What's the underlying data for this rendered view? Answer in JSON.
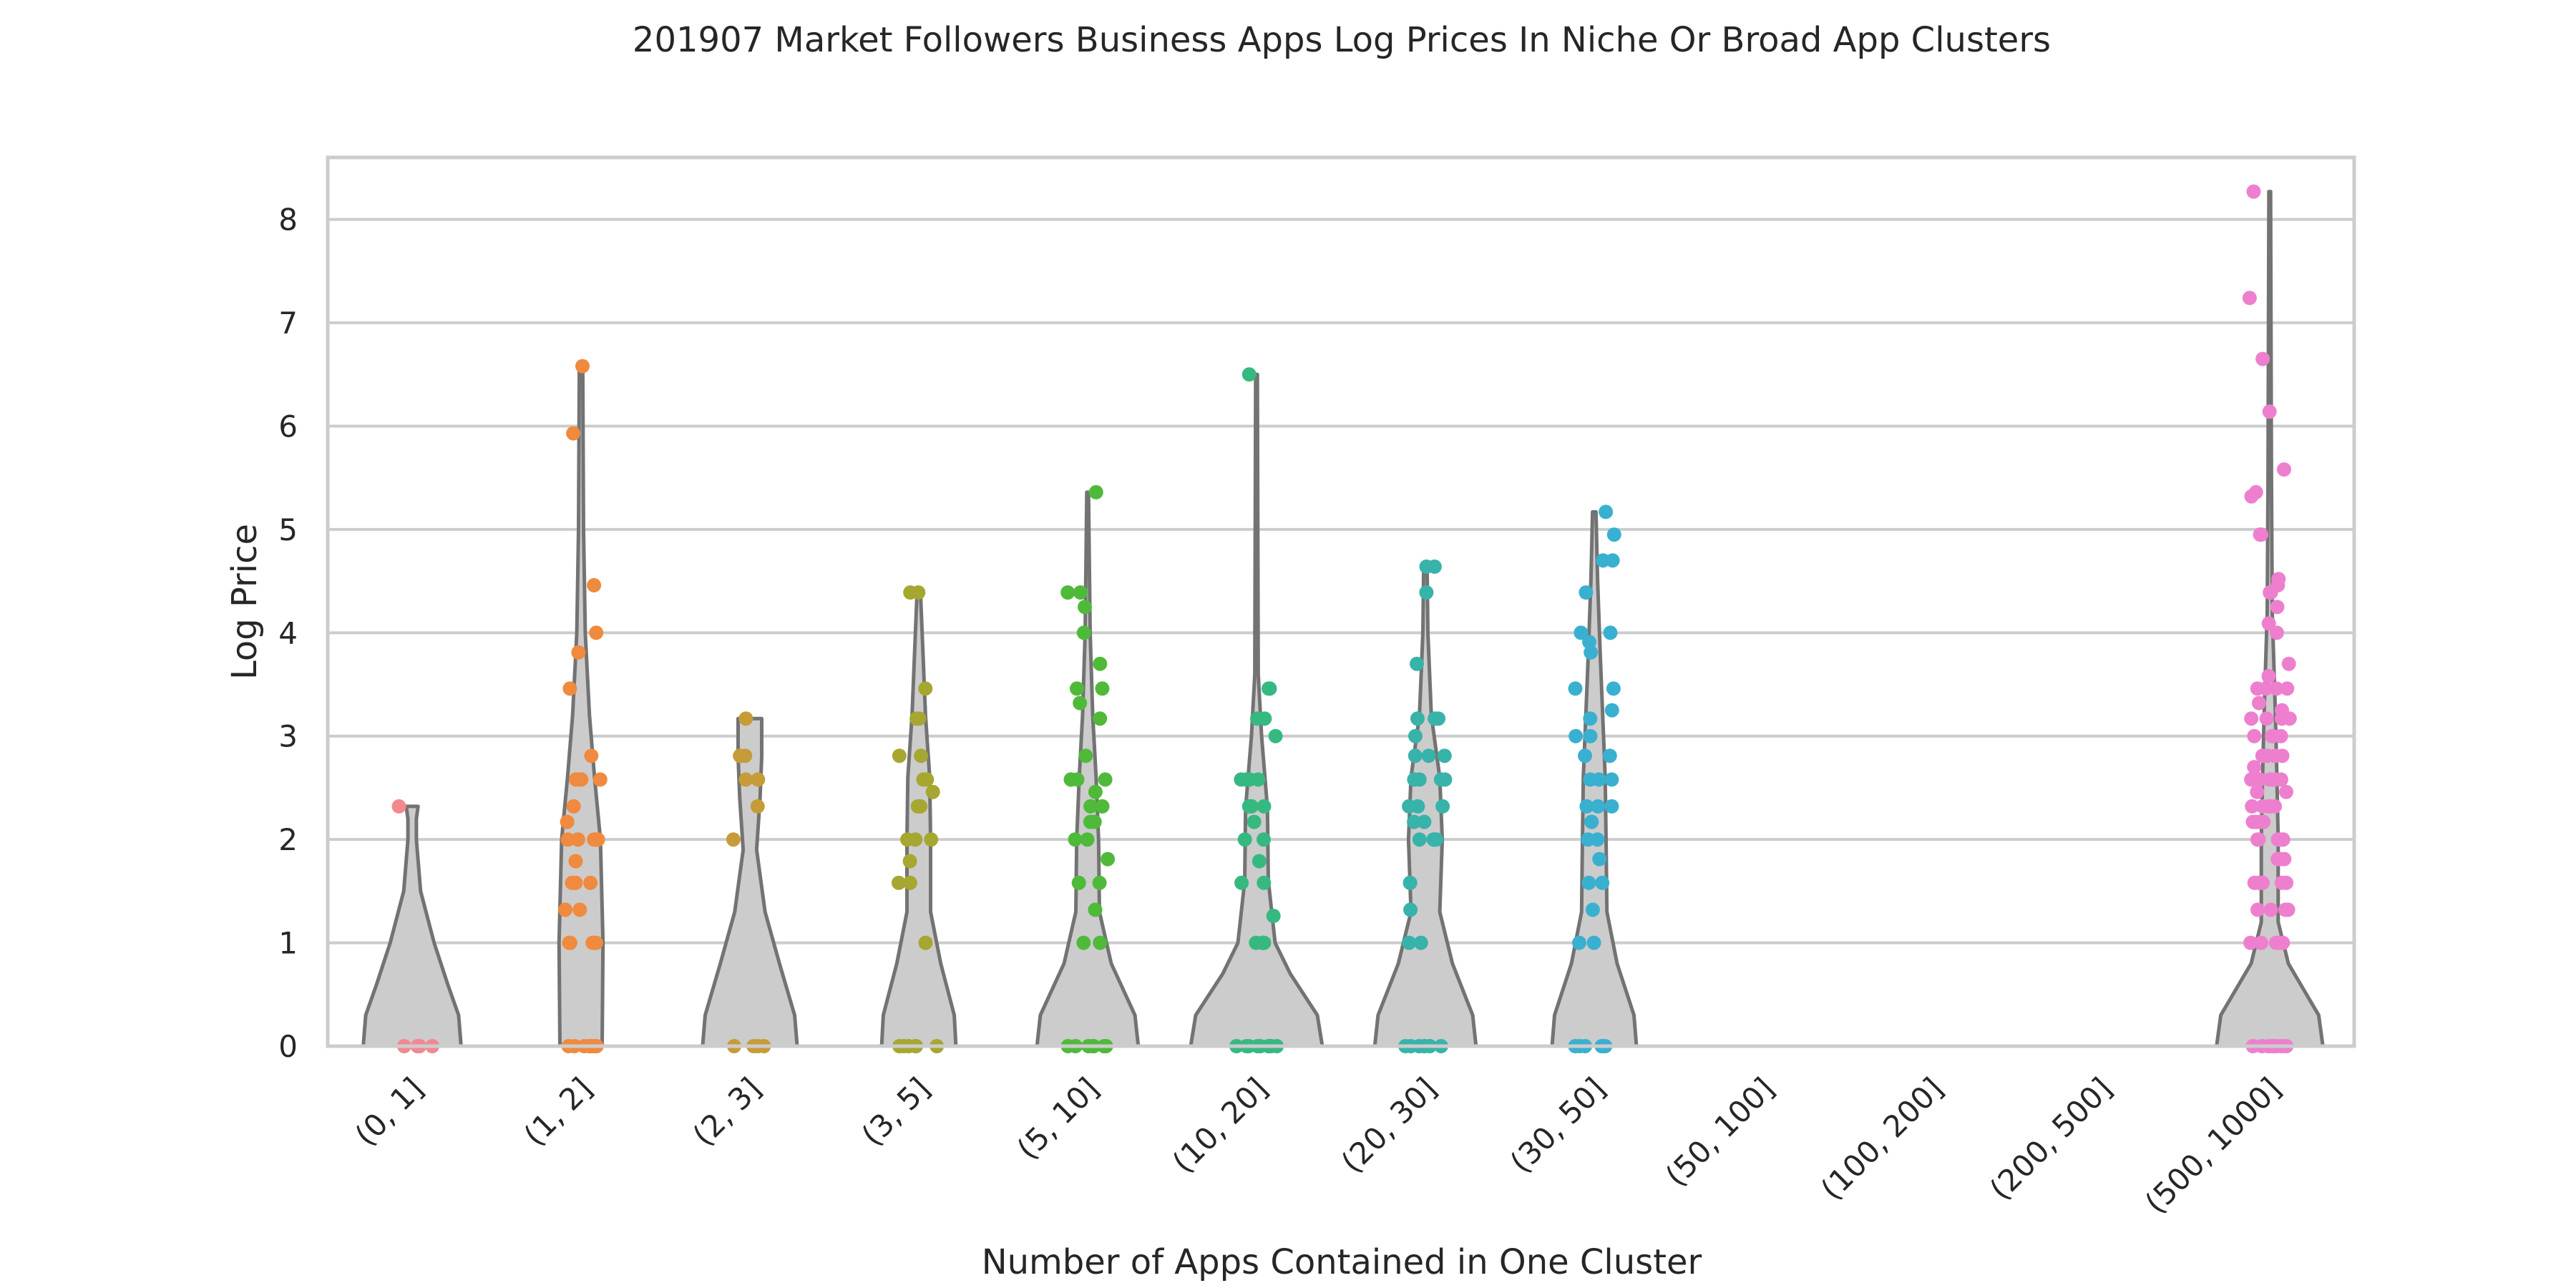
{
  "chart_data": {
    "type": "violin-strip",
    "title": "201907 Market Followers Business Apps Log Prices In Niche Or Broad App Clusters",
    "xlabel": "Number of Apps Contained in One Cluster",
    "ylabel": "Log Price",
    "ylim": [
      0,
      8.6
    ],
    "yticks": [
      0,
      1,
      2,
      3,
      4,
      5,
      6,
      7,
      8
    ],
    "grid": "horizontal",
    "tick_rotation": 45,
    "violin_fill": "#cccccc",
    "violin_stroke": "#737373",
    "categories": [
      "(0, 1]",
      "(1, 2]",
      "(2, 3]",
      "(3, 5]",
      "(5, 10]",
      "(10, 20]",
      "(20, 30]",
      "(30, 50]",
      "(50, 100]",
      "(100, 200]",
      "(200, 500]",
      "(500, 1000]"
    ],
    "groups": [
      {
        "category": "(0, 1]",
        "color": "#f48890",
        "violin": {
          "max": 2.32,
          "profile": [
            [
              0,
              0.58
            ],
            [
              0.3,
              0.55
            ],
            [
              0.6,
              0.42
            ],
            [
              1.0,
              0.26
            ],
            [
              1.5,
              0.1
            ],
            [
              2.0,
              0.05
            ],
            [
              2.2,
              0.05
            ],
            [
              2.32,
              0.07
            ]
          ]
        },
        "points": [
          0,
          0,
          0,
          0,
          0,
          0,
          2.32
        ]
      },
      {
        "category": "(1, 2]",
        "color": "#f08a3e",
        "violin": {
          "max": 6.58,
          "profile": [
            [
              0,
              0.25
            ],
            [
              1.0,
              0.26
            ],
            [
              2.0,
              0.23
            ],
            [
              2.6,
              0.16
            ],
            [
              3.2,
              0.1
            ],
            [
              4.0,
              0.05
            ],
            [
              5.0,
              0.03
            ],
            [
              6.58,
              0.02
            ]
          ]
        },
        "points": [
          0,
          0,
          0,
          0,
          0,
          0,
          0,
          0,
          1.0,
          1.0,
          1.0,
          1.0,
          1.0,
          1.32,
          1.32,
          1.58,
          1.58,
          1.58,
          1.79,
          2.0,
          2.0,
          2.0,
          2.0,
          2.0,
          2.0,
          2.17,
          2.32,
          2.58,
          2.58,
          2.58,
          2.58,
          2.81,
          3.46,
          3.81,
          4.0,
          4.46,
          5.93,
          6.58
        ]
      },
      {
        "category": "(2, 3]",
        "color": "#c69c39",
        "violin": {
          "max": 3.17,
          "profile": [
            [
              0,
              0.56
            ],
            [
              0.3,
              0.53
            ],
            [
              0.8,
              0.35
            ],
            [
              1.3,
              0.18
            ],
            [
              1.9,
              0.08
            ],
            [
              2.4,
              0.12
            ],
            [
              2.8,
              0.14
            ],
            [
              3.17,
              0.14
            ]
          ]
        },
        "points": [
          0,
          0,
          0,
          0,
          2.0,
          2.32,
          2.58,
          2.58,
          2.81,
          2.81,
          3.17
        ]
      },
      {
        "category": "(3, 5]",
        "color": "#a5a731",
        "violin": {
          "max": 4.39,
          "profile": [
            [
              0,
              0.44
            ],
            [
              0.3,
              0.42
            ],
            [
              0.8,
              0.26
            ],
            [
              1.3,
              0.14
            ],
            [
              2.0,
              0.14
            ],
            [
              2.6,
              0.13
            ],
            [
              3.2,
              0.08
            ],
            [
              3.8,
              0.05
            ],
            [
              4.39,
              0.02
            ]
          ]
        },
        "points": [
          0,
          0,
          0,
          0,
          0,
          0,
          1.0,
          1.58,
          1.58,
          1.79,
          2.0,
          2.0,
          2.0,
          2.32,
          2.32,
          2.46,
          2.58,
          2.58,
          2.81,
          2.81,
          3.17,
          3.17,
          3.46,
          4.39,
          4.39
        ]
      },
      {
        "category": "(5, 10]",
        "color": "#4fba3a",
        "violin": {
          "max": 5.36,
          "profile": [
            [
              0,
              0.6
            ],
            [
              0.3,
              0.56
            ],
            [
              0.8,
              0.28
            ],
            [
              1.3,
              0.14
            ],
            [
              2.0,
              0.13
            ],
            [
              2.6,
              0.1
            ],
            [
              3.2,
              0.06
            ],
            [
              4.0,
              0.03
            ],
            [
              5.36,
              0.01
            ]
          ]
        },
        "points": [
          0,
          0,
          0,
          0,
          0,
          0,
          0,
          0,
          1.0,
          1.0,
          1.32,
          1.58,
          1.58,
          1.81,
          2.0,
          2.0,
          2.17,
          2.17,
          2.32,
          2.32,
          2.46,
          2.58,
          2.58,
          2.58,
          2.58,
          2.81,
          3.17,
          3.32,
          3.46,
          3.46,
          3.7,
          4.0,
          4.25,
          4.39,
          4.39,
          5.36
        ]
      },
      {
        "category": "(10, 20]",
        "color": "#36b981",
        "violin": {
          "max": 6.5,
          "profile": [
            [
              0,
              0.78
            ],
            [
              0.3,
              0.72
            ],
            [
              0.7,
              0.4
            ],
            [
              1.0,
              0.22
            ],
            [
              1.6,
              0.14
            ],
            [
              2.3,
              0.13
            ],
            [
              3.0,
              0.06
            ],
            [
              3.6,
              0.02
            ],
            [
              6.5,
              0.01
            ]
          ]
        },
        "points": [
          0,
          0,
          0,
          0,
          0,
          0,
          0,
          0,
          0,
          1.0,
          1.0,
          1.0,
          1.0,
          1.0,
          1.26,
          1.58,
          1.58,
          1.79,
          2.0,
          2.0,
          2.17,
          2.32,
          2.32,
          2.32,
          2.32,
          2.58,
          2.58,
          2.58,
          2.58,
          3.0,
          3.17,
          3.17,
          3.46,
          3.46,
          6.5
        ]
      },
      {
        "category": "(20, 30]",
        "color": "#38b3a9",
        "violin": {
          "max": 4.64,
          "profile": [
            [
              0,
              0.6
            ],
            [
              0.3,
              0.56
            ],
            [
              0.8,
              0.32
            ],
            [
              1.3,
              0.17
            ],
            [
              2.0,
              0.2
            ],
            [
              2.6,
              0.17
            ],
            [
              3.2,
              0.07
            ],
            [
              4.0,
              0.03
            ],
            [
              4.64,
              0.02
            ]
          ]
        },
        "points": [
          0,
          0,
          0,
          0,
          0,
          0,
          0,
          1.0,
          1.0,
          1.32,
          1.58,
          1.58,
          2.0,
          2.0,
          2.0,
          2.0,
          2.17,
          2.17,
          2.32,
          2.32,
          2.32,
          2.58,
          2.58,
          2.58,
          2.58,
          2.81,
          2.81,
          2.81,
          3.0,
          3.17,
          3.17,
          3.17,
          3.7,
          4.39,
          4.64,
          4.64
        ]
      },
      {
        "category": "(30, 50]",
        "color": "#3ab0d1",
        "violin": {
          "max": 5.17,
          "profile": [
            [
              0,
              0.5
            ],
            [
              0.3,
              0.47
            ],
            [
              0.8,
              0.27
            ],
            [
              1.3,
              0.15
            ],
            [
              2.0,
              0.14
            ],
            [
              2.6,
              0.13
            ],
            [
              3.2,
              0.1
            ],
            [
              3.8,
              0.07
            ],
            [
              4.5,
              0.04
            ],
            [
              5.17,
              0.02
            ]
          ]
        },
        "points": [
          0,
          0,
          0,
          0,
          0,
          0,
          1.0,
          1.0,
          1.32,
          1.58,
          1.58,
          1.81,
          2.0,
          2.0,
          2.17,
          2.17,
          2.32,
          2.32,
          2.32,
          2.58,
          2.58,
          2.58,
          2.81,
          2.81,
          3.0,
          3.0,
          3.17,
          3.25,
          3.46,
          3.46,
          3.81,
          3.91,
          4.0,
          4.0,
          4.39,
          4.7,
          4.7,
          4.95,
          5.17
        ]
      },
      {
        "category": "(50, 100]",
        "color": "#67a9e8",
        "violin": null,
        "points": []
      },
      {
        "category": "(100, 200]",
        "color": "#9b92ea",
        "violin": null,
        "points": []
      },
      {
        "category": "(200, 500]",
        "color": "#d382ea",
        "violin": null,
        "points": []
      },
      {
        "category": "(500, 1000]",
        "color": "#ee7fcf",
        "violin": {
          "max": 8.27,
          "profile": [
            [
              0,
              0.63
            ],
            [
              0.3,
              0.58
            ],
            [
              0.8,
              0.22
            ],
            [
              1.2,
              0.1
            ],
            [
              2.0,
              0.1
            ],
            [
              2.8,
              0.08
            ],
            [
              3.4,
              0.06
            ],
            [
              4.2,
              0.03
            ],
            [
              5.5,
              0.02
            ],
            [
              8.27,
              0.01
            ]
          ]
        },
        "points": [
          0,
          0,
          0,
          0,
          0,
          0,
          0,
          0,
          0,
          0,
          1.0,
          1.0,
          1.0,
          1.0,
          1.0,
          1.0,
          1.32,
          1.32,
          1.32,
          1.32,
          1.58,
          1.58,
          1.58,
          1.58,
          1.58,
          1.58,
          1.81,
          1.81,
          1.81,
          2.0,
          2.0,
          2.0,
          2.0,
          2.0,
          2.0,
          2.17,
          2.17,
          2.17,
          2.17,
          2.32,
          2.32,
          2.32,
          2.32,
          2.32,
          2.46,
          2.46,
          2.58,
          2.58,
          2.58,
          2.58,
          2.58,
          2.58,
          2.7,
          2.81,
          2.81,
          2.81,
          2.81,
          2.81,
          3.0,
          3.0,
          3.0,
          3.0,
          3.17,
          3.17,
          3.17,
          3.17,
          3.25,
          3.32,
          3.46,
          3.46,
          3.46,
          3.46,
          3.58,
          3.7,
          4.0,
          4.09,
          4.25,
          4.39,
          4.39,
          4.46,
          4.52,
          4.95,
          4.95,
          5.32,
          5.36,
          5.58,
          6.14,
          6.65,
          7.24,
          8.27
        ]
      }
    ]
  }
}
